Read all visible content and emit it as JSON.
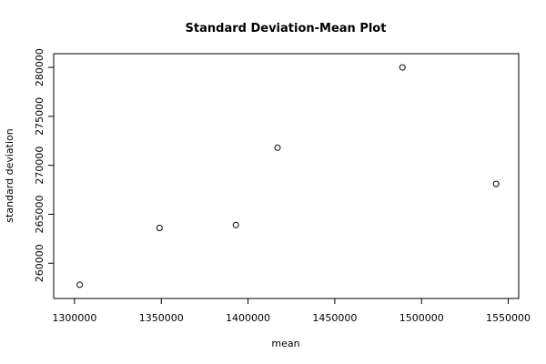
{
  "chart_data": {
    "type": "scatter",
    "title": "Standard Deviation-Mean Plot",
    "xlabel": "mean",
    "ylabel": "standard deviation",
    "xlim": [
      1288000,
      1556000
    ],
    "ylim": [
      256400,
      281400
    ],
    "x_ticks": [
      {
        "value": 1300000,
        "label": "1300000"
      },
      {
        "value": 1350000,
        "label": "1350000"
      },
      {
        "value": 1400000,
        "label": "1400000"
      },
      {
        "value": 1450000,
        "label": "1450000"
      },
      {
        "value": 1500000,
        "label": "1500000"
      },
      {
        "value": 1550000,
        "label": "1550000"
      }
    ],
    "y_ticks": [
      {
        "value": 260000,
        "label": "260000"
      },
      {
        "value": 265000,
        "label": "265000"
      },
      {
        "value": 270000,
        "label": "270000"
      },
      {
        "value": 275000,
        "label": "275000"
      },
      {
        "value": 280000,
        "label": "280000"
      }
    ],
    "points": [
      {
        "x": 1303000,
        "y": 257800
      },
      {
        "x": 1349000,
        "y": 263600
      },
      {
        "x": 1393000,
        "y": 263900
      },
      {
        "x": 1417000,
        "y": 271800
      },
      {
        "x": 1489000,
        "y": 280000
      },
      {
        "x": 1543000,
        "y": 268100
      }
    ],
    "marker": "open-circle",
    "colors": {
      "points": "#000000",
      "axes": "#000000",
      "background": "#ffffff"
    },
    "grid": false,
    "legend": "none"
  }
}
